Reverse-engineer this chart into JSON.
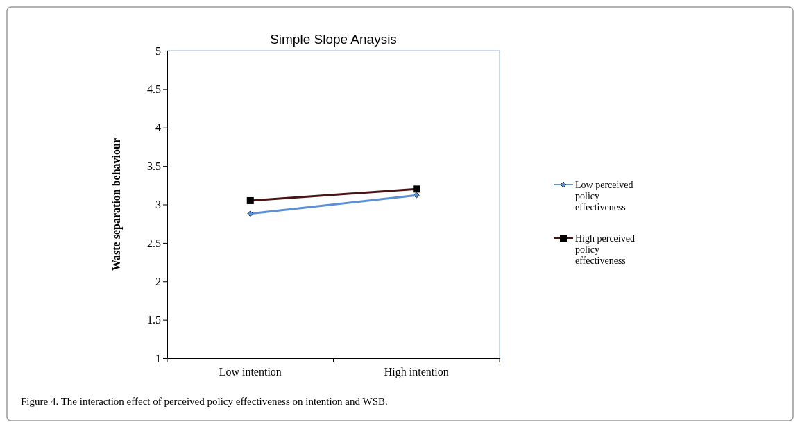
{
  "chart_data": {
    "type": "line",
    "title": "Simple Slope Anaysis",
    "ylabel": "Waste separation behaviour",
    "categories": [
      "Low intention",
      "High intention"
    ],
    "series": [
      {
        "name": "Low perceived policy effectiveness",
        "color": "#5b8fd6",
        "values": [
          2.88,
          3.12
        ],
        "marker": "diamond"
      },
      {
        "name": "High perceived policy effectiveness",
        "color": "#4a1414",
        "values": [
          3.05,
          3.2
        ],
        "marker": "square"
      }
    ],
    "ylim": [
      1,
      5
    ],
    "yticks": [
      1,
      1.5,
      2,
      2.5,
      3,
      3.5,
      4,
      4.5,
      5
    ],
    "grid": false,
    "legend": "right",
    "annotations": [
      "Figure 4. The interaction effect of perceived policy effectiveness on intention and WSB."
    ]
  }
}
